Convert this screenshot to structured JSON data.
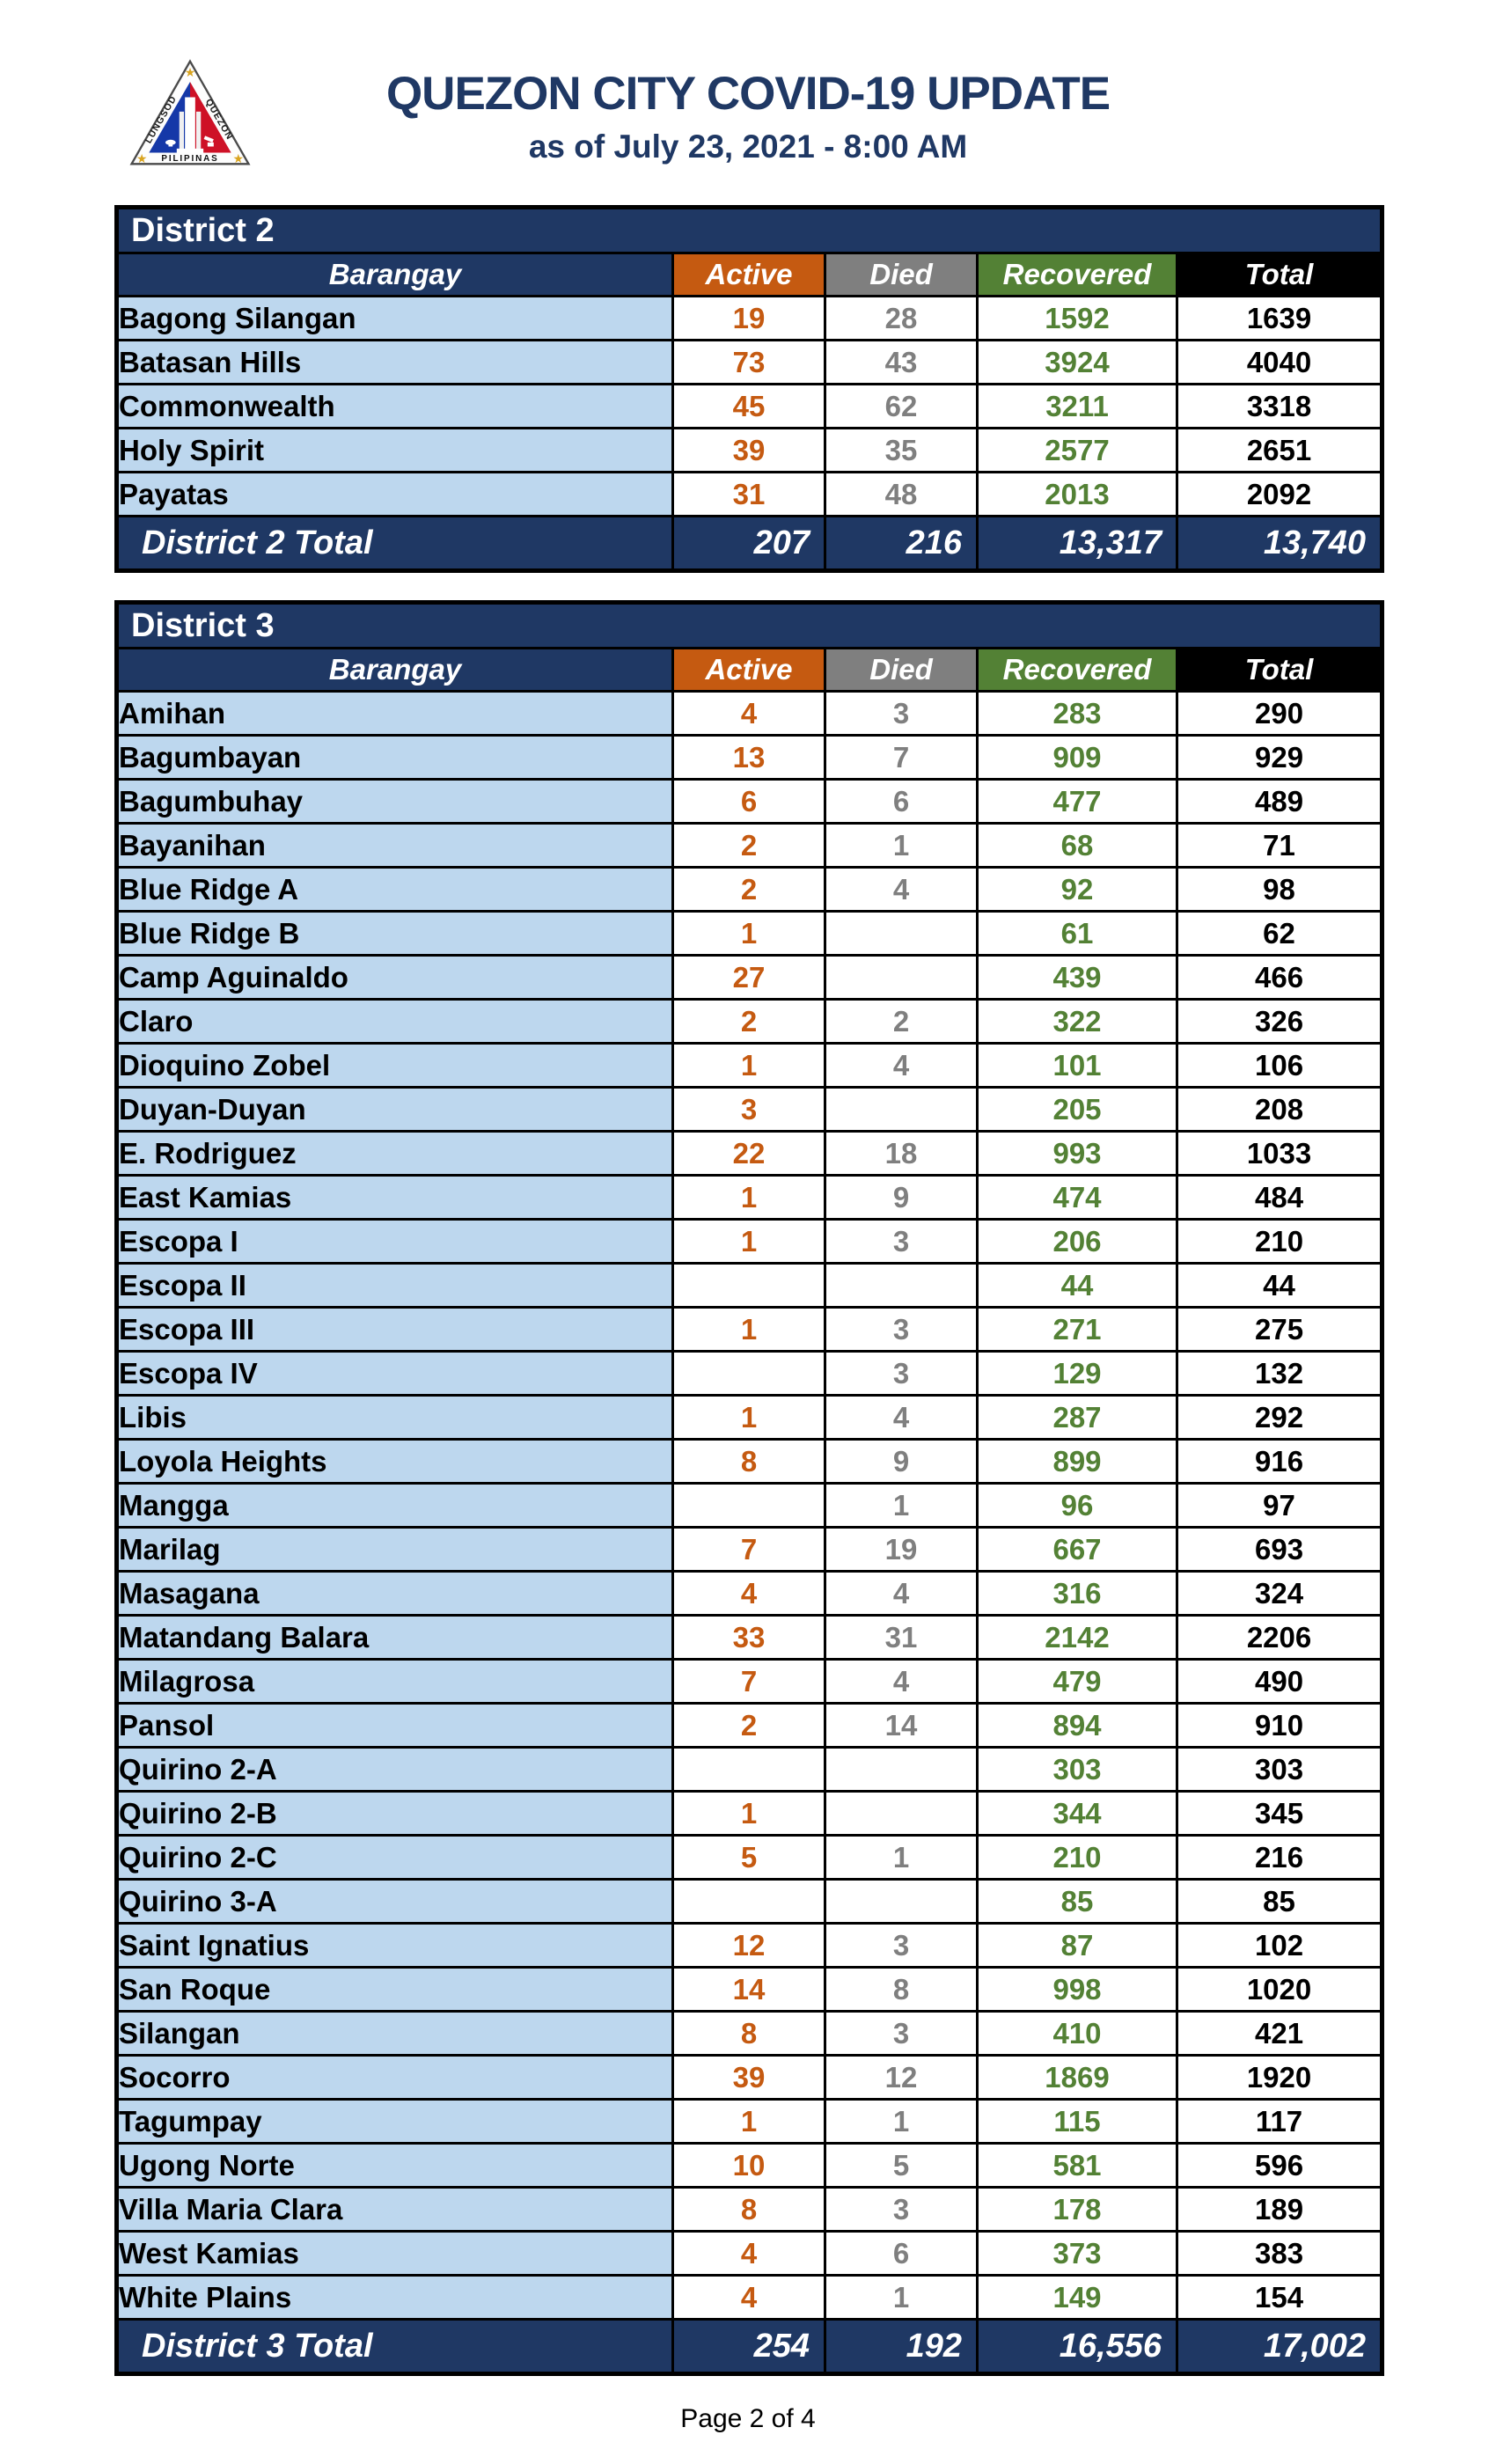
{
  "header": {
    "title": "QUEZON CITY COVID-19 UPDATE",
    "subtitle": "as of July 23, 2021 - 8:00 AM",
    "seal": {
      "icon": "quezon-city-seal",
      "left_text": "LUNGSOD",
      "right_text": "QUEZON",
      "bottom_text": "PILIPINAS"
    }
  },
  "columns": {
    "barangay": "Barangay",
    "active": "Active",
    "died": "Died",
    "recovered": "Recovered",
    "total": "Total"
  },
  "colors": {
    "navy": "#1F3864",
    "light_blue": "#BDD7EE",
    "active_orange": "#C55A11",
    "died_gray": "#7F7F7F",
    "recovered_green": "#538135",
    "total_black": "#000000",
    "title_blue": "#1F3864"
  },
  "tables": [
    {
      "district": "District 2",
      "rows": [
        [
          "Bagong Silangan",
          "19",
          "28",
          "1592",
          "1639"
        ],
        [
          "Batasan Hills",
          "73",
          "43",
          "3924",
          "4040"
        ],
        [
          "Commonwealth",
          "45",
          "62",
          "3211",
          "3318"
        ],
        [
          "Holy Spirit",
          "39",
          "35",
          "2577",
          "2651"
        ],
        [
          "Payatas",
          "31",
          "48",
          "2013",
          "2092"
        ]
      ],
      "total_row": [
        "District 2 Total",
        "207",
        "216",
        "13,317",
        "13,740"
      ]
    },
    {
      "district": "District 3",
      "rows": [
        [
          "Amihan",
          "4",
          "3",
          "283",
          "290"
        ],
        [
          "Bagumbayan",
          "13",
          "7",
          "909",
          "929"
        ],
        [
          "Bagumbuhay",
          "6",
          "6",
          "477",
          "489"
        ],
        [
          "Bayanihan",
          "2",
          "1",
          "68",
          "71"
        ],
        [
          "Blue Ridge A",
          "2",
          "4",
          "92",
          "98"
        ],
        [
          "Blue Ridge B",
          "1",
          "",
          "61",
          "62"
        ],
        [
          "Camp Aguinaldo",
          "27",
          "",
          "439",
          "466"
        ],
        [
          "Claro",
          "2",
          "2",
          "322",
          "326"
        ],
        [
          "Dioquino Zobel",
          "1",
          "4",
          "101",
          "106"
        ],
        [
          "Duyan-Duyan",
          "3",
          "",
          "205",
          "208"
        ],
        [
          "E. Rodriguez",
          "22",
          "18",
          "993",
          "1033"
        ],
        [
          "East Kamias",
          "1",
          "9",
          "474",
          "484"
        ],
        [
          "Escopa I",
          "1",
          "3",
          "206",
          "210"
        ],
        [
          "Escopa II",
          "",
          "",
          "44",
          "44"
        ],
        [
          "Escopa III",
          "1",
          "3",
          "271",
          "275"
        ],
        [
          "Escopa IV",
          "",
          "3",
          "129",
          "132"
        ],
        [
          "Libis",
          "1",
          "4",
          "287",
          "292"
        ],
        [
          "Loyola Heights",
          "8",
          "9",
          "899",
          "916"
        ],
        [
          "Mangga",
          "",
          "1",
          "96",
          "97"
        ],
        [
          "Marilag",
          "7",
          "19",
          "667",
          "693"
        ],
        [
          "Masagana",
          "4",
          "4",
          "316",
          "324"
        ],
        [
          "Matandang Balara",
          "33",
          "31",
          "2142",
          "2206"
        ],
        [
          "Milagrosa",
          "7",
          "4",
          "479",
          "490"
        ],
        [
          "Pansol",
          "2",
          "14",
          "894",
          "910"
        ],
        [
          "Quirino 2-A",
          "",
          "",
          "303",
          "303"
        ],
        [
          "Quirino 2-B",
          "1",
          "",
          "344",
          "345"
        ],
        [
          "Quirino 2-C",
          "5",
          "1",
          "210",
          "216"
        ],
        [
          "Quirino 3-A",
          "",
          "",
          "85",
          "85"
        ],
        [
          "Saint Ignatius",
          "12",
          "3",
          "87",
          "102"
        ],
        [
          "San Roque",
          "14",
          "8",
          "998",
          "1020"
        ],
        [
          "Silangan",
          "8",
          "3",
          "410",
          "421"
        ],
        [
          "Socorro",
          "39",
          "12",
          "1869",
          "1920"
        ],
        [
          "Tagumpay",
          "1",
          "1",
          "115",
          "117"
        ],
        [
          "Ugong Norte",
          "10",
          "5",
          "581",
          "596"
        ],
        [
          "Villa Maria Clara",
          "8",
          "3",
          "178",
          "189"
        ],
        [
          "West Kamias",
          "4",
          "6",
          "373",
          "383"
        ],
        [
          "White Plains",
          "4",
          "1",
          "149",
          "154"
        ]
      ],
      "total_row": [
        "District 3 Total",
        "254",
        "192",
        "16,556",
        "17,002"
      ]
    }
  ],
  "footer": {
    "page_label": "Page 2 of 4"
  }
}
